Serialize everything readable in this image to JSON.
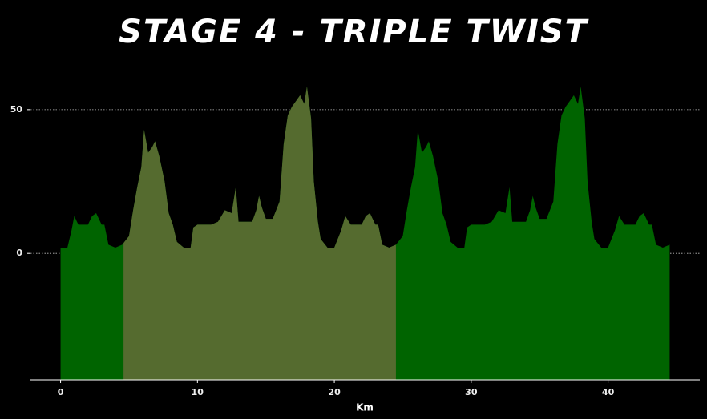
{
  "chart_data": {
    "type": "area",
    "title": "STAGE 4 - TRIPLE TWIST",
    "x_label": "Km",
    "x": [
      0,
      0.5,
      0.8,
      1,
      1.3,
      2,
      2.3,
      2.6,
      3,
      3.2,
      3.5,
      4,
      4.5,
      5,
      5.3,
      5.6,
      5.9,
      6.1,
      6.4,
      6.7,
      6.9,
      7.2,
      7.6,
      7.9,
      8.2,
      8.5,
      9,
      9.5,
      9.7,
      10,
      10.5,
      11,
      11.5,
      12,
      12.5,
      12.8,
      13,
      13.5,
      14,
      14.3,
      14.5,
      14.7,
      15,
      15.5,
      16,
      16.3,
      16.6,
      16.9,
      17.2,
      17.5,
      17.8,
      18,
      18.3,
      18.5,
      18.8,
      19,
      19.5,
      20,
      20.5,
      20.8,
      21.2,
      22,
      22.3,
      22.6,
      23,
      23.2,
      23.5,
      24,
      24.5,
      25,
      25.3,
      25.6,
      25.9,
      26.1,
      26.4,
      26.7,
      26.9,
      27.2,
      27.6,
      27.9,
      28.2,
      28.5,
      29,
      29.5,
      29.7,
      30,
      30.5,
      31,
      31.5,
      32,
      32.5,
      32.8,
      33,
      33.5,
      34,
      34.3,
      34.5,
      34.7,
      35,
      35.5,
      36,
      36.3,
      36.6,
      36.9,
      37.2,
      37.5,
      37.8,
      38,
      38.3,
      38.5,
      38.8,
      39,
      39.5,
      40,
      40.5,
      40.8,
      41.2,
      42,
      42.3,
      42.6,
      43,
      43.2,
      43.5,
      44,
      44.5
    ],
    "values": [
      2,
      2,
      8,
      13,
      10,
      10,
      13,
      14,
      10,
      10,
      3,
      2,
      3,
      6,
      15,
      23,
      30,
      43,
      35,
      37,
      39,
      34,
      25,
      14,
      10,
      4,
      2,
      2,
      9,
      10,
      10,
      10,
      11,
      15,
      14,
      23,
      11,
      11,
      11,
      15,
      20,
      16,
      12,
      12,
      18,
      38,
      48,
      51,
      53,
      55,
      52,
      58,
      47,
      25,
      11,
      5,
      2,
      2,
      8,
      13,
      10,
      10,
      13,
      14,
      10,
      10,
      3,
      2,
      3,
      6,
      15,
      23,
      30,
      43,
      35,
      37,
      39,
      34,
      25,
      14,
      10,
      4,
      2,
      2,
      9,
      10,
      10,
      10,
      11,
      15,
      14,
      23,
      11,
      11,
      11,
      15,
      20,
      16,
      12,
      12,
      18,
      38,
      48,
      51,
      53,
      55,
      52,
      58,
      47,
      25,
      11,
      5,
      2,
      2,
      8,
      13,
      10,
      10,
      13,
      14,
      10,
      10,
      3,
      2,
      3
    ],
    "color": "#006400",
    "highlight": {
      "xmin": 4.6,
      "xmax": 24.5,
      "color": "#556b2f"
    },
    "xlim": [
      -2.2,
      46.7
    ],
    "ylim": [
      -44,
      60
    ],
    "xticks": [
      0,
      10,
      20,
      30,
      40
    ],
    "yticks": [
      0,
      50
    ],
    "grid": true
  }
}
